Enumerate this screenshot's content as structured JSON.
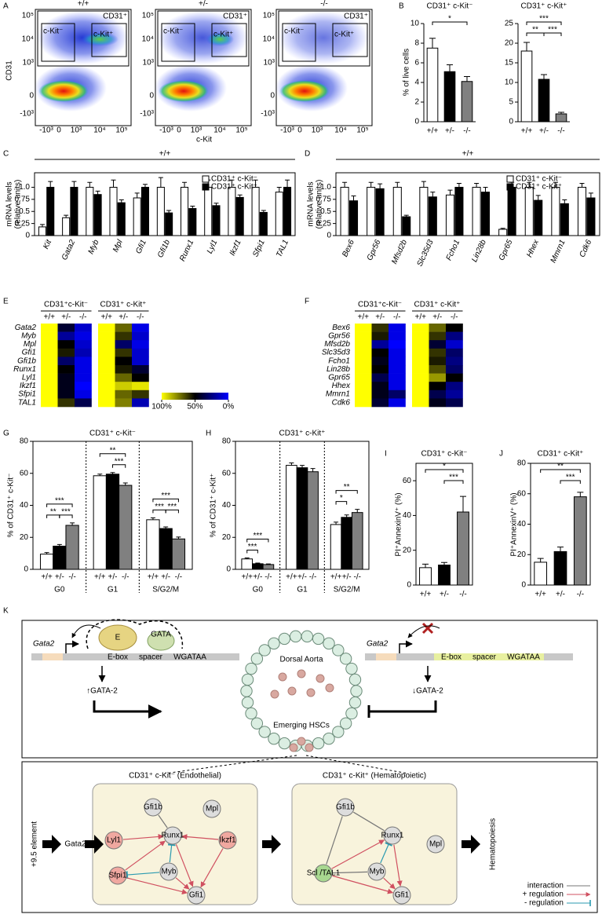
{
  "panel_labels": [
    "A",
    "B",
    "C",
    "D",
    "E",
    "F",
    "G",
    "H",
    "I",
    "J",
    "K"
  ],
  "flow": {
    "y_label": "CD31",
    "x_label": "c-Kit",
    "y_ticks": [
      "10⁵",
      "10⁴",
      "10³",
      "0",
      "-10³"
    ],
    "x_ticks": [
      "-10³",
      "0",
      "10³",
      "10⁴",
      "10⁵"
    ],
    "plots": [
      {
        "title": "+/+",
        "gate_labels": [
          "CD31⁺",
          "c-Kit⁻",
          "c-Kit⁺"
        ]
      },
      {
        "title": "+/-",
        "gate_labels": [
          "CD31⁺",
          "c-Kit⁻",
          "c-Kit⁺"
        ]
      },
      {
        "title": "-/-",
        "gate_labels": [
          "CD31⁺",
          "c-Kit⁻",
          "c-Kit⁺"
        ]
      }
    ]
  },
  "chart_data": [
    {
      "type": "bar",
      "title": "CD31⁺ c-Kit⁻",
      "ylabel": "% of live cells",
      "categories": [
        "+/+",
        "+/-",
        "-/-"
      ],
      "values": [
        7.5,
        5.1,
        4.1
      ],
      "errors": [
        1.0,
        0.7,
        0.5
      ],
      "colors": [
        "#ffffff",
        "#000000",
        "#808080"
      ],
      "ylim": [
        0,
        10
      ],
      "yticks": [
        0,
        2,
        4,
        6,
        8,
        10
      ],
      "significance": [
        "*"
      ]
    },
    {
      "type": "bar",
      "title": "CD31⁺ c-Kit⁺",
      "categories": [
        "+/+",
        "+/-",
        "-/-"
      ],
      "values": [
        18,
        10.8,
        2
      ],
      "errors": [
        2.2,
        1.2,
        0.4
      ],
      "colors": [
        "#ffffff",
        "#000000",
        "#808080"
      ],
      "ylim": [
        0,
        25
      ],
      "yticks": [
        0,
        5,
        10,
        15,
        20,
        25
      ],
      "significance": [
        "***",
        "**",
        "***"
      ]
    },
    {
      "type": "grouped_bar",
      "title": "+/+",
      "ylabel": [
        "mRNA levels",
        "(relative units)"
      ],
      "categories": [
        "Kit",
        "Gata2",
        "Myb",
        "Mpl",
        "Gfi1",
        "Gfi1b",
        "Runx1",
        "Lyl1",
        "Ikzf1",
        "Sfpi1",
        "TAL1"
      ],
      "series": [
        {
          "name": "CD31⁺ c-Kit⁻",
          "color": "#ffffff",
          "values": [
            0.18,
            0.37,
            1,
            1,
            0.78,
            1,
            1,
            1,
            1,
            1,
            0.9
          ],
          "errors": [
            0.05,
            0.05,
            0.1,
            0.15,
            0.1,
            0.2,
            0.1,
            0.15,
            0.15,
            0.15,
            0.1
          ]
        },
        {
          "name": "CD31⁺ c-Kit⁺",
          "color": "#000000",
          "values": [
            1,
            1,
            0.85,
            0.68,
            1,
            0.47,
            0.56,
            0.62,
            0.79,
            0.48,
            1
          ],
          "errors": [
            0.12,
            0.12,
            0.07,
            0.06,
            0.06,
            0.05,
            0.05,
            0.05,
            0.05,
            0.04,
            0.15
          ]
        }
      ],
      "ylim": [
        0,
        1.3
      ],
      "yticks": [
        0,
        0.25,
        0.5,
        0.75,
        {
          "value": 1,
          "label": "1.0"
        }
      ]
    },
    {
      "type": "grouped_bar",
      "title": "+/+",
      "ylabel": [
        "mRNA levels",
        "(relative units)"
      ],
      "categories": [
        "Bex6",
        "Gpr56",
        "Mfsd2b",
        "Slc35d3",
        "Fcho1",
        "Lin28b",
        "Gpr65",
        "Hhex",
        "Mmrn1",
        "Cdk6"
      ],
      "series": [
        {
          "name": "CD31⁺ c-Kit⁻",
          "color": "#ffffff",
          "values": [
            1,
            1,
            1,
            1,
            0.84,
            1,
            0.13,
            1,
            1,
            1
          ],
          "errors": [
            0.1,
            0.1,
            0.1,
            0.12,
            0.1,
            0.08,
            0.02,
            0.1,
            0.1,
            0.08
          ]
        },
        {
          "name": "CD31⁺ c-Kit⁺",
          "color": "#000000",
          "values": [
            0.72,
            0.97,
            0.39,
            0.8,
            1,
            0.9,
            1,
            0.73,
            0.66,
            0.78
          ],
          "errors": [
            0.1,
            0.1,
            0.03,
            0.1,
            0.08,
            0.1,
            0.1,
            0.1,
            0.08,
            0.1
          ]
        }
      ],
      "ylim": [
        0,
        1.3
      ],
      "yticks": [
        0,
        0.25,
        0.5,
        0.75,
        {
          "value": 1,
          "label": "1.0"
        }
      ]
    },
    {
      "type": "heatmap",
      "rows": [
        "Gata2",
        "Myb",
        "Mpl",
        "Gfi1",
        "Gfi1b",
        "Runx1",
        "Lyl1",
        "Ikzf1",
        "Sfpi1",
        "TAL1"
      ],
      "groups": [
        {
          "name": "CD31⁺c-Kit⁻",
          "columns": [
            "+/+",
            "+/-",
            "-/-"
          ],
          "values": [
            [
              100,
              100,
              100,
              100,
              100,
              100,
              100,
              100,
              100,
              100
            ],
            [
              40,
              20,
              50,
              55,
              30,
              50,
              45,
              45,
              45,
              60
            ],
            [
              10,
              5,
              10,
              15,
              5,
              5,
              5,
              0,
              5,
              35
            ]
          ]
        },
        {
          "name": "CD31⁺ c-Kit⁺",
          "columns": [
            "+/+",
            "+/-",
            "-/-"
          ],
          "values": [
            [
              100,
              100,
              100,
              100,
              100,
              100,
              100,
              100,
              100,
              100
            ],
            [
              70,
              60,
              30,
              60,
              50,
              55,
              70,
              90,
              70,
              75
            ],
            [
              5,
              10,
              5,
              10,
              10,
              40,
              50,
              95,
              60,
              15
            ]
          ]
        }
      ],
      "vlim": [
        0,
        100
      ],
      "colors": [
        "#ffff00",
        "#000000",
        "#0000ff"
      ],
      "colorbar": [
        {
          "value": 100,
          "label": "100%"
        },
        {
          "value": 50,
          "label": "50%"
        },
        {
          "value": 0,
          "label": "0%"
        }
      ]
    },
    {
      "type": "heatmap",
      "rows": [
        "Bex6",
        "Gpr56",
        "Mfsd2b",
        "Slc35d3",
        "Fcho1",
        "Lin28b",
        "Gpr65",
        "Hhex",
        "Mmrn1",
        "Cdk6"
      ],
      "groups": [
        {
          "name": "CD31⁺c-Kit⁻",
          "columns": [
            "+/+",
            "+/-",
            "-/-"
          ],
          "values": [
            [
              100,
              100,
              100,
              100,
              100,
              100,
              100,
              100,
              100,
              100
            ],
            [
              60,
              55,
              20,
              50,
              45,
              50,
              35,
              45,
              45,
              40
            ],
            [
              5,
              5,
              0,
              5,
              5,
              5,
              5,
              5,
              30,
              5
            ]
          ]
        },
        {
          "name": "CD31⁺ c-Kit⁺",
          "columns": [
            "+/+",
            "+/-",
            "-/-"
          ],
          "values": [
            [
              100,
              100,
              100,
              100,
              100,
              100,
              100,
              100,
              100,
              100
            ],
            [
              70,
              60,
              40,
              60,
              55,
              65,
              80,
              50,
              35,
              45
            ],
            [
              50,
              25,
              10,
              30,
              25,
              30,
              50,
              25,
              20,
              35
            ]
          ]
        }
      ],
      "vlim": [
        0,
        100
      ],
      "colors": [
        "#ffff00",
        "#000000",
        "#0000ff"
      ]
    },
    {
      "type": "grouped_bar",
      "title": "CD31⁺ c-Kit⁻",
      "ylabel": "% of CD31⁺ c-Kit⁻",
      "categories": [
        "G0",
        "G1",
        "S/G2/M"
      ],
      "series": [
        {
          "name": "+/+",
          "color": "#ffffff",
          "values": [
            9.5,
            58.5,
            31
          ],
          "errors": [
            1,
            1,
            1.2
          ]
        },
        {
          "name": "+/-",
          "color": "#000000",
          "values": [
            14.5,
            59.5,
            25.5
          ],
          "errors": [
            1,
            1,
            1
          ]
        },
        {
          "name": "-/-",
          "color": "#808080",
          "values": [
            27.5,
            52.5,
            19
          ],
          "errors": [
            1.5,
            1.5,
            1.2
          ]
        }
      ],
      "ylim": [
        0,
        80
      ],
      "yticks": [
        0,
        20,
        40,
        60,
        80
      ],
      "significance": [
        [
          "***",
          "**",
          "***"
        ],
        [
          "**",
          "***"
        ],
        [
          "***",
          "***",
          "***"
        ]
      ]
    },
    {
      "type": "grouped_bar",
      "title": "CD31⁺ c-Kit⁺",
      "ylabel": "% of CD31⁺ c-Kit⁺",
      "categories": [
        "G0",
        "G1",
        "S/G2/M"
      ],
      "series": [
        {
          "name": "+/+",
          "color": "#ffffff",
          "values": [
            6.5,
            65,
            28
          ],
          "errors": [
            0.6,
            1.5,
            1.5
          ]
        },
        {
          "name": "+/-",
          "color": "#000000",
          "values": [
            3.5,
            63.5,
            32.5
          ],
          "errors": [
            0.4,
            1.5,
            1.5
          ]
        },
        {
          "name": "-/-",
          "color": "#808080",
          "values": [
            3,
            61,
            35.5
          ],
          "errors": [
            0.4,
            2,
            2
          ]
        }
      ],
      "ylim": [
        0,
        80
      ],
      "yticks": [
        0,
        20,
        40,
        60,
        80
      ],
      "significance": [
        [
          "***",
          "***"
        ],
        [],
        [
          "**",
          "*"
        ]
      ]
    },
    {
      "type": "bar",
      "title": "CD31⁺ c-Kit⁻",
      "ylabel": "PI⁺AnnexinV⁺ (%)",
      "categories": [
        "+/+",
        "+/-",
        "-/-"
      ],
      "values": [
        10,
        11.5,
        42
      ],
      "errors": [
        2,
        1.5,
        9
      ],
      "colors": [
        "#ffffff",
        "#000000",
        "#808080"
      ],
      "ylim": [
        0,
        70
      ],
      "yticks": [
        0,
        20,
        40,
        60
      ],
      "significance": [
        "*",
        "***"
      ]
    },
    {
      "type": "bar",
      "title": "CD31⁺ c-Kit⁺",
      "ylabel": "PI⁺AnnexinV⁺ (%)",
      "categories": [
        "+/+",
        "+/-",
        "-/-"
      ],
      "values": [
        15,
        22,
        58
      ],
      "errors": [
        2.5,
        3,
        3
      ],
      "colors": [
        "#ffffff",
        "#000000",
        "#808080"
      ],
      "ylim": [
        0,
        80
      ],
      "yticks": [
        0,
        20,
        40,
        60,
        80
      ],
      "significance": [
        "**",
        "***"
      ]
    }
  ],
  "diagram": {
    "top_left": {
      "gene": "Gata2",
      "factors": [
        "E",
        "GATA"
      ],
      "motif": [
        "E-box",
        "spacer",
        "WGATAA"
      ],
      "level": "↑GATA-2"
    },
    "vessel": {
      "label": "Dorsal Aorta",
      "cells": "Emerging HSCs"
    },
    "top_right": {
      "gene": "Gata2",
      "motif": [
        "E-box",
        "spacer",
        "WGATAA"
      ],
      "level": "↓GATA-2"
    },
    "networks": [
      {
        "title": "CD31⁺ c-Kit⁻ (Endothelial)",
        "nodes": [
          "Gfi1b",
          "Mpl",
          "Lyl1",
          "Runx1",
          "Ikzf1",
          "Sfpi1",
          "Myb",
          "Gfi1"
        ]
      },
      {
        "title": "CD31⁺ c-Kit⁺ (Hematopoietic)",
        "nodes": [
          "Gfi1b",
          "Runx1",
          "Mpl",
          "Scl /TAL1",
          "Myb",
          "Gfi1"
        ]
      }
    ],
    "input": [
      "+9.5 element",
      "Gata2"
    ],
    "output": "Hematopoiesis",
    "legend": [
      "interaction",
      "+ regulation",
      "- regulation"
    ]
  }
}
